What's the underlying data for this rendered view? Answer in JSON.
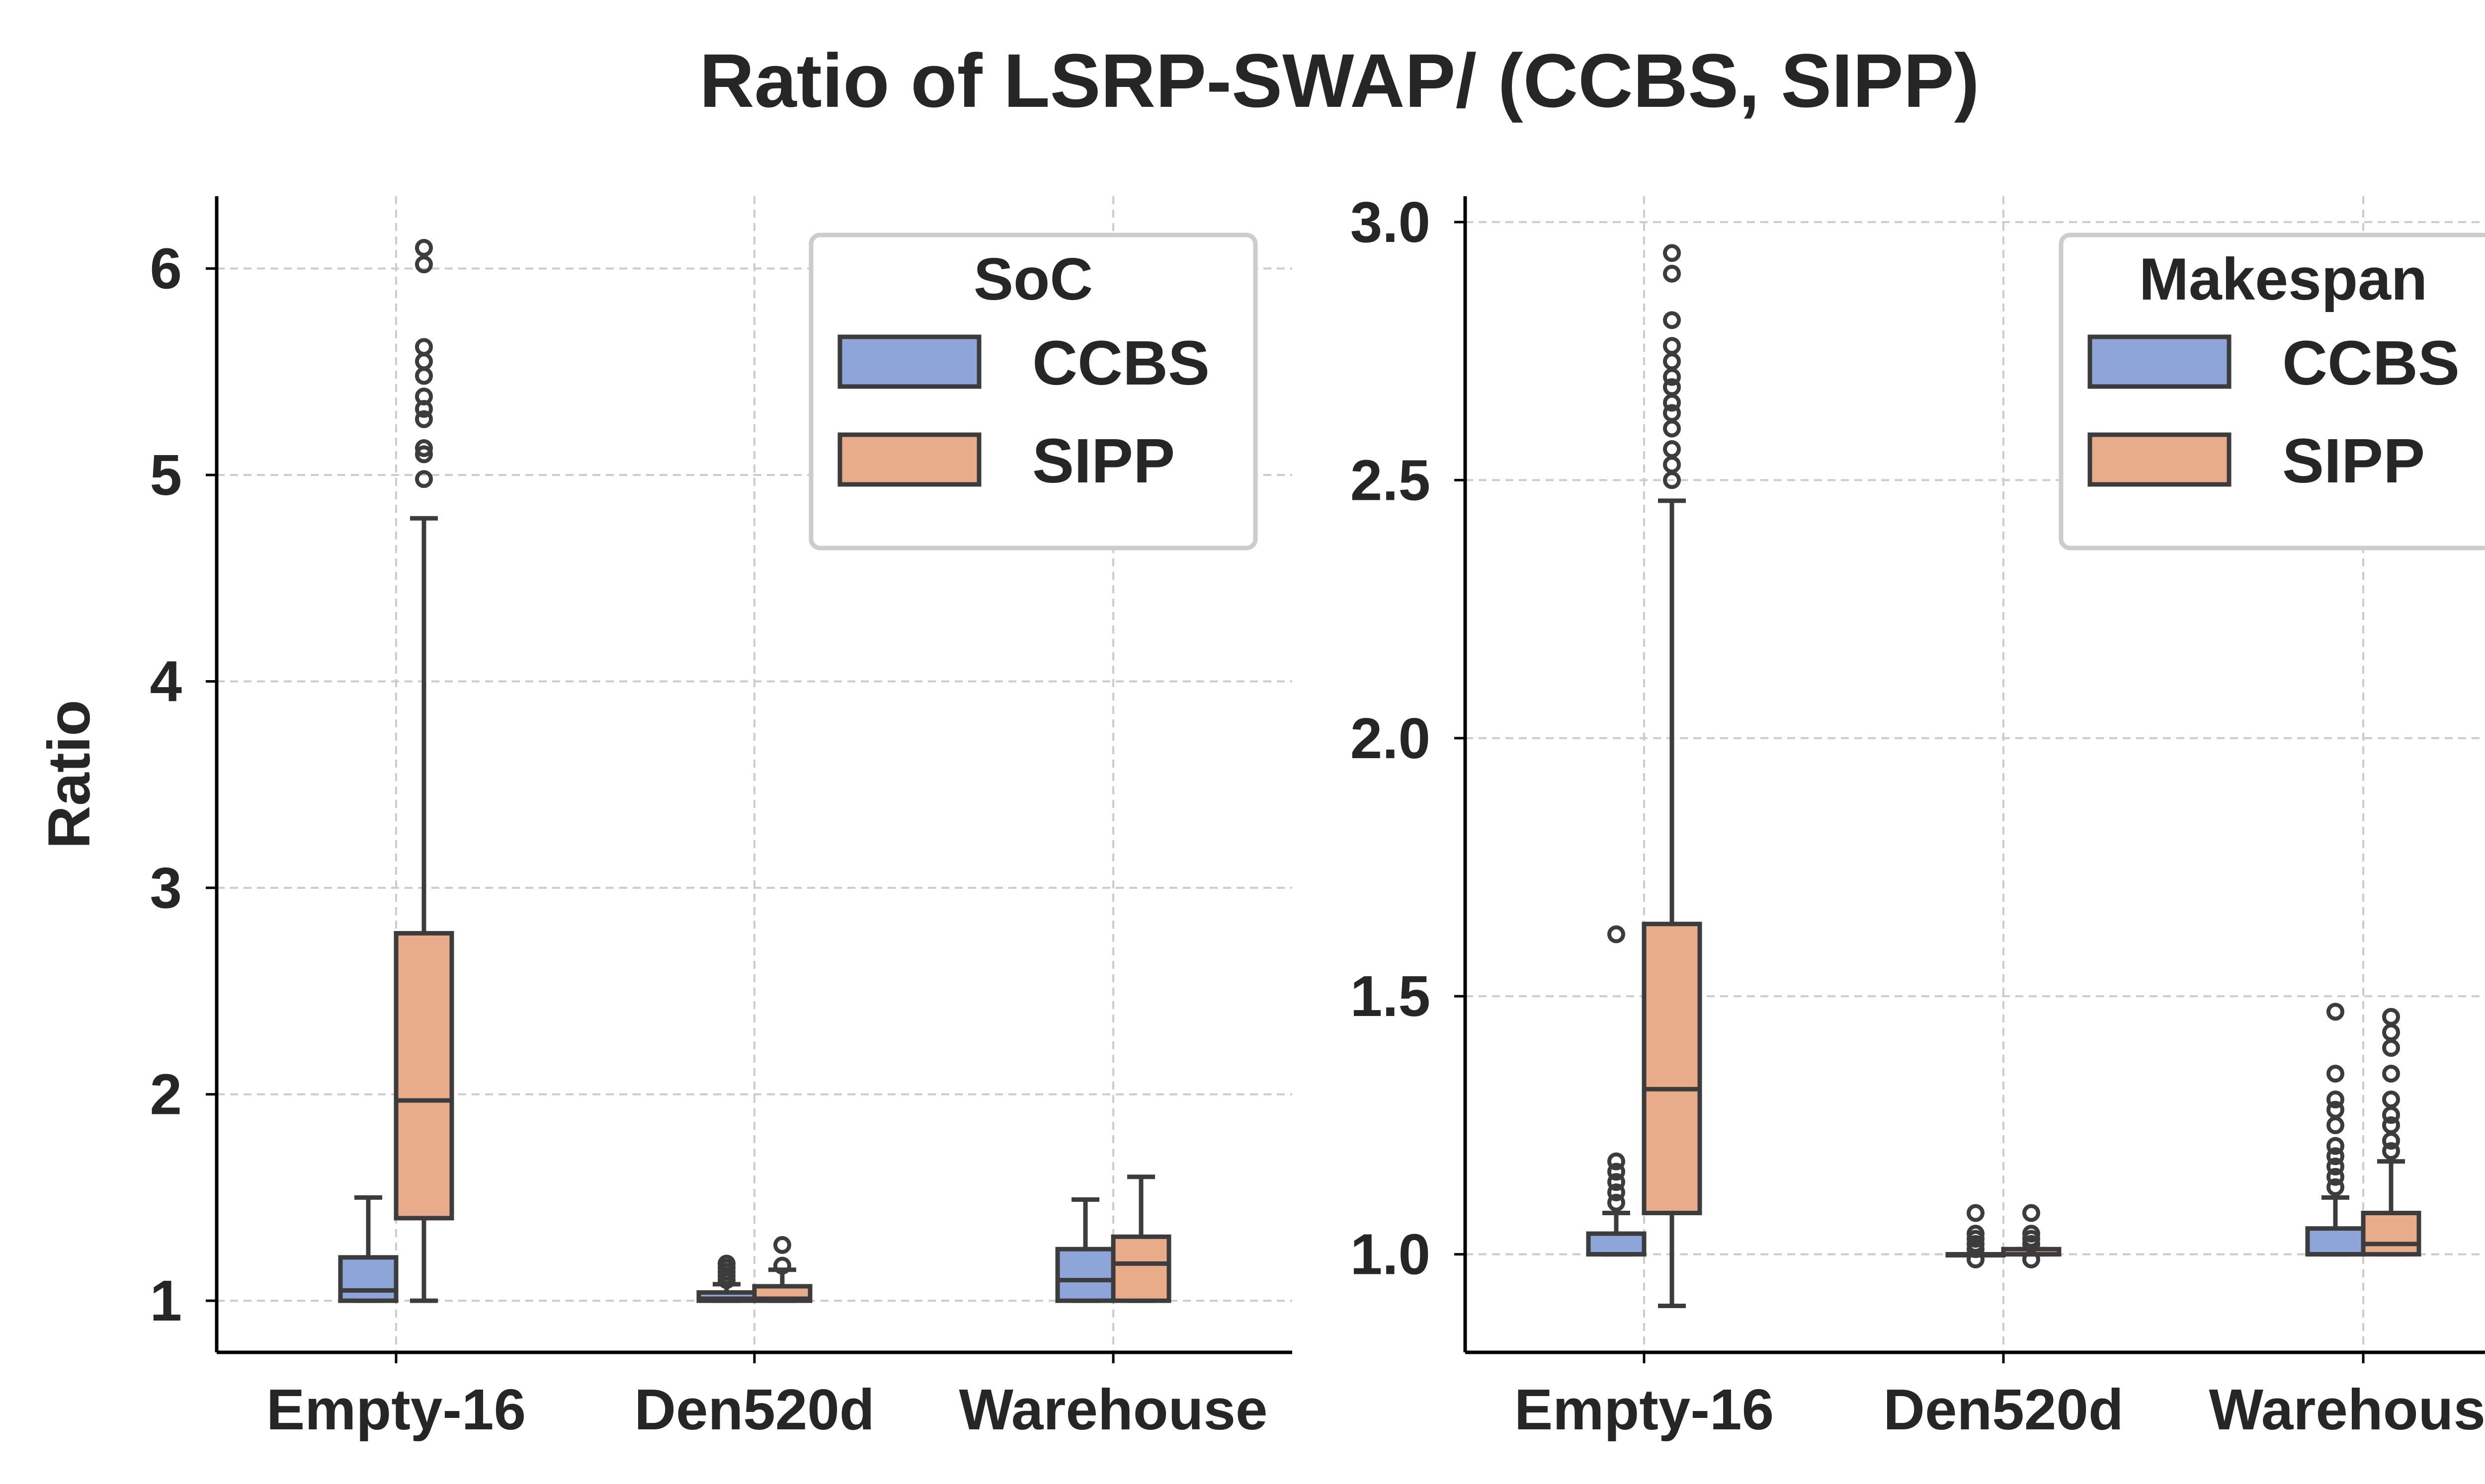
{
  "title": "Ratio of LSRP-SWAP/ (CCBS, SIPP)",
  "colors": {
    "CCBS": "#8da5d9",
    "SIPP": "#e9ac8a",
    "edge": "#3c3c3c",
    "grid": "#cccccc"
  },
  "chart_data": [
    {
      "type": "box",
      "ylabel": "Ratio",
      "xlabel": "",
      "ylim": [
        0.75,
        6.35
      ],
      "yticks": [
        "1",
        "2",
        "3",
        "4",
        "5",
        "6"
      ],
      "categories": [
        "Empty-16",
        "Den520d",
        "Warehouse"
      ],
      "legend": {
        "title": "SoC",
        "position": "top-right",
        "entries": [
          "CCBS",
          "SIPP"
        ]
      },
      "series": [
        {
          "name": "CCBS",
          "boxes": [
            {
              "whislo": 1.0,
              "q1": 1.0,
              "med": 1.05,
              "q3": 1.21,
              "whishi": 1.5,
              "fliers": []
            },
            {
              "whislo": 1.0,
              "q1": 1.0,
              "med": 1.01,
              "q3": 1.04,
              "whishi": 1.08,
              "fliers": [
                1.1,
                1.12,
                1.14,
                1.16,
                1.18
              ]
            },
            {
              "whislo": 1.0,
              "q1": 1.0,
              "med": 1.1,
              "q3": 1.25,
              "whishi": 1.49,
              "fliers": []
            }
          ]
        },
        {
          "name": "SIPP",
          "boxes": [
            {
              "whislo": 1.0,
              "q1": 1.4,
              "med": 1.97,
              "q3": 2.78,
              "whishi": 4.79,
              "fliers": [
                4.98,
                5.1,
                5.13,
                5.27,
                5.32,
                5.38,
                5.48,
                5.55,
                5.62,
                6.02,
                6.1
              ]
            },
            {
              "whislo": 1.0,
              "q1": 1.0,
              "med": 1.01,
              "q3": 1.07,
              "whishi": 1.15,
              "fliers": [
                1.17,
                1.27
              ]
            },
            {
              "whislo": 1.0,
              "q1": 1.0,
              "med": 1.18,
              "q3": 1.31,
              "whishi": 1.6,
              "fliers": []
            }
          ]
        }
      ]
    },
    {
      "type": "box",
      "ylabel": "",
      "xlabel": "",
      "ylim": [
        0.81,
        3.05
      ],
      "yticks": [
        "1.0",
        "1.5",
        "2.0",
        "2.5",
        "3.0"
      ],
      "categories": [
        "Empty-16",
        "Den520d",
        "Warehouse"
      ],
      "legend": {
        "title": "Makespan",
        "position": "top-right",
        "entries": [
          "CCBS",
          "SIPP"
        ]
      },
      "series": [
        {
          "name": "CCBS",
          "boxes": [
            {
              "whislo": 1.0,
              "q1": 1.0,
              "med": 1.0,
              "q3": 1.04,
              "whishi": 1.08,
              "fliers": [
                1.1,
                1.12,
                1.14,
                1.16,
                1.18,
                1.62
              ]
            },
            {
              "whislo": 1.0,
              "q1": 1.0,
              "med": 1.0,
              "q3": 1.0,
              "whishi": 1.0,
              "fliers": [
                0.99,
                1.01,
                1.02,
                1.03,
                1.04,
                1.08
              ]
            },
            {
              "whislo": 1.0,
              "q1": 1.0,
              "med": 1.0,
              "q3": 1.05,
              "whishi": 1.11,
              "fliers": [
                1.13,
                1.15,
                1.17,
                1.19,
                1.21,
                1.25,
                1.28,
                1.3,
                1.35,
                1.47
              ]
            }
          ]
        },
        {
          "name": "SIPP",
          "boxes": [
            {
              "whislo": 0.9,
              "q1": 1.08,
              "med": 1.32,
              "q3": 1.64,
              "whishi": 2.46,
              "fliers": [
                2.5,
                2.53,
                2.56,
                2.6,
                2.63,
                2.65,
                2.68,
                2.7,
                2.73,
                2.76,
                2.81,
                2.9,
                2.94
              ]
            },
            {
              "whislo": 1.0,
              "q1": 1.0,
              "med": 1.0,
              "q3": 1.01,
              "whishi": 1.01,
              "fliers": [
                0.99,
                1.02,
                1.03,
                1.04,
                1.08
              ]
            },
            {
              "whislo": 1.0,
              "q1": 1.0,
              "med": 1.02,
              "q3": 1.08,
              "whishi": 1.18,
              "fliers": [
                1.2,
                1.22,
                1.25,
                1.27,
                1.3,
                1.35,
                1.4,
                1.43,
                1.46
              ]
            }
          ]
        }
      ]
    }
  ]
}
